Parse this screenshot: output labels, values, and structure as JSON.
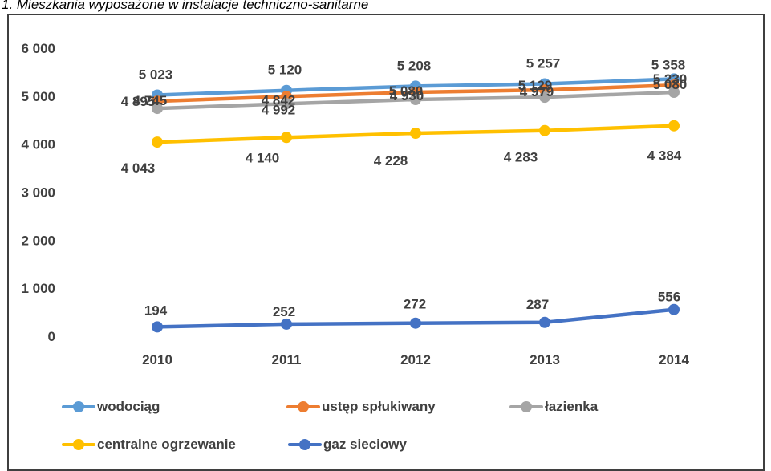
{
  "page": {
    "title": "1. Mieszkania wyposażone w instalacje techniczno-sanitarne"
  },
  "chart_data": {
    "type": "line",
    "title": "",
    "xlabel": "",
    "ylabel": "",
    "categories": [
      "2010",
      "2011",
      "2012",
      "2013",
      "2014"
    ],
    "ylim": [
      0,
      6000
    ],
    "yticks": [
      "0",
      "1 000",
      "2 000",
      "3 000",
      "4 000",
      "5 000",
      "6 000"
    ],
    "grid": false,
    "legend_position": "bottom",
    "series": [
      {
        "name": "wodociąg",
        "color": "#5b9bd5",
        "values": [
          5023,
          5120,
          5208,
          5257,
          5358
        ],
        "labels": [
          "5 023",
          "5 120",
          "5 208",
          "5 257",
          "5 358"
        ]
      },
      {
        "name": "ustęp spłukiwany",
        "color": "#ed7d31",
        "values": [
          4895,
          4992,
          5080,
          5129,
          5230
        ],
        "labels": [
          "4 895",
          "4 992",
          "5 080",
          "5 129",
          "5 230"
        ]
      },
      {
        "name": "łazienka",
        "color": "#a5a5a5",
        "values": [
          4745,
          4842,
          4930,
          4979,
          5080
        ],
        "labels": [
          "4 745",
          "4 842",
          "4 930",
          "4 979",
          "5 080"
        ]
      },
      {
        "name": "centralne ogrzewanie",
        "color": "#ffc000",
        "values": [
          4043,
          4140,
          4228,
          4283,
          4384
        ],
        "labels": [
          "4 043",
          "4 140",
          "4 228",
          "4 283",
          "4 384"
        ]
      },
      {
        "name": "gaz sieciowy",
        "color": "#4472c4",
        "values": [
          194,
          252,
          272,
          287,
          556
        ],
        "labels": [
          "194",
          "252",
          "272",
          "287",
          "556"
        ]
      }
    ]
  }
}
